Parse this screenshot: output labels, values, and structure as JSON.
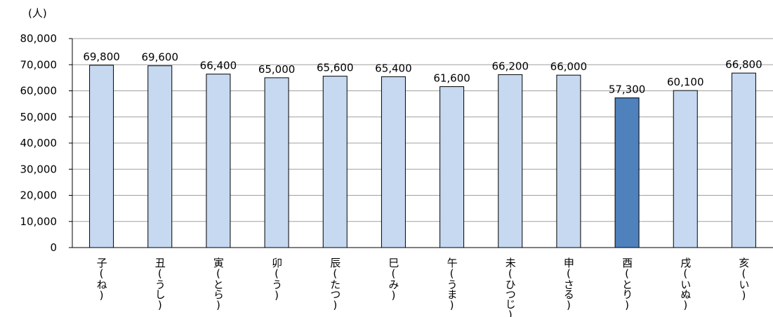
{
  "chart_data": {
    "type": "bar",
    "unit_label": "(人)",
    "categories": [
      "子(ね)",
      "丑(うし)",
      "寅(とら)",
      "卯(う)",
      "辰(たつ)",
      "巳(み)",
      "午(うま)",
      "未(ひつじ)",
      "申(さる)",
      "酉(とり)",
      "戌(いぬ)",
      "亥(い)"
    ],
    "values": [
      69800,
      69600,
      66400,
      65000,
      65600,
      65400,
      61600,
      66200,
      66000,
      57300,
      60100,
      66800
    ],
    "data_labels": [
      "69,800",
      "69,600",
      "66,400",
      "65,000",
      "65,600",
      "65,400",
      "61,600",
      "66,200",
      "66,000",
      "57,300",
      "60,100",
      "66,800"
    ],
    "yticks": [
      0,
      10000,
      20000,
      30000,
      40000,
      50000,
      60000,
      70000,
      80000
    ],
    "ytick_labels": [
      "0",
      "10,000",
      "20,000",
      "30,000",
      "40,000",
      "50,000",
      "60,000",
      "70,000",
      "80,000"
    ],
    "ylim": [
      0,
      80000
    ],
    "grid": true,
    "highlight_index": 9,
    "colors": {
      "bar": "#c6d9f1",
      "bar_highlight": "#4f81bd",
      "bar_stroke": "#000000",
      "grid": "#a0a0a0",
      "axis": "#000000"
    }
  }
}
